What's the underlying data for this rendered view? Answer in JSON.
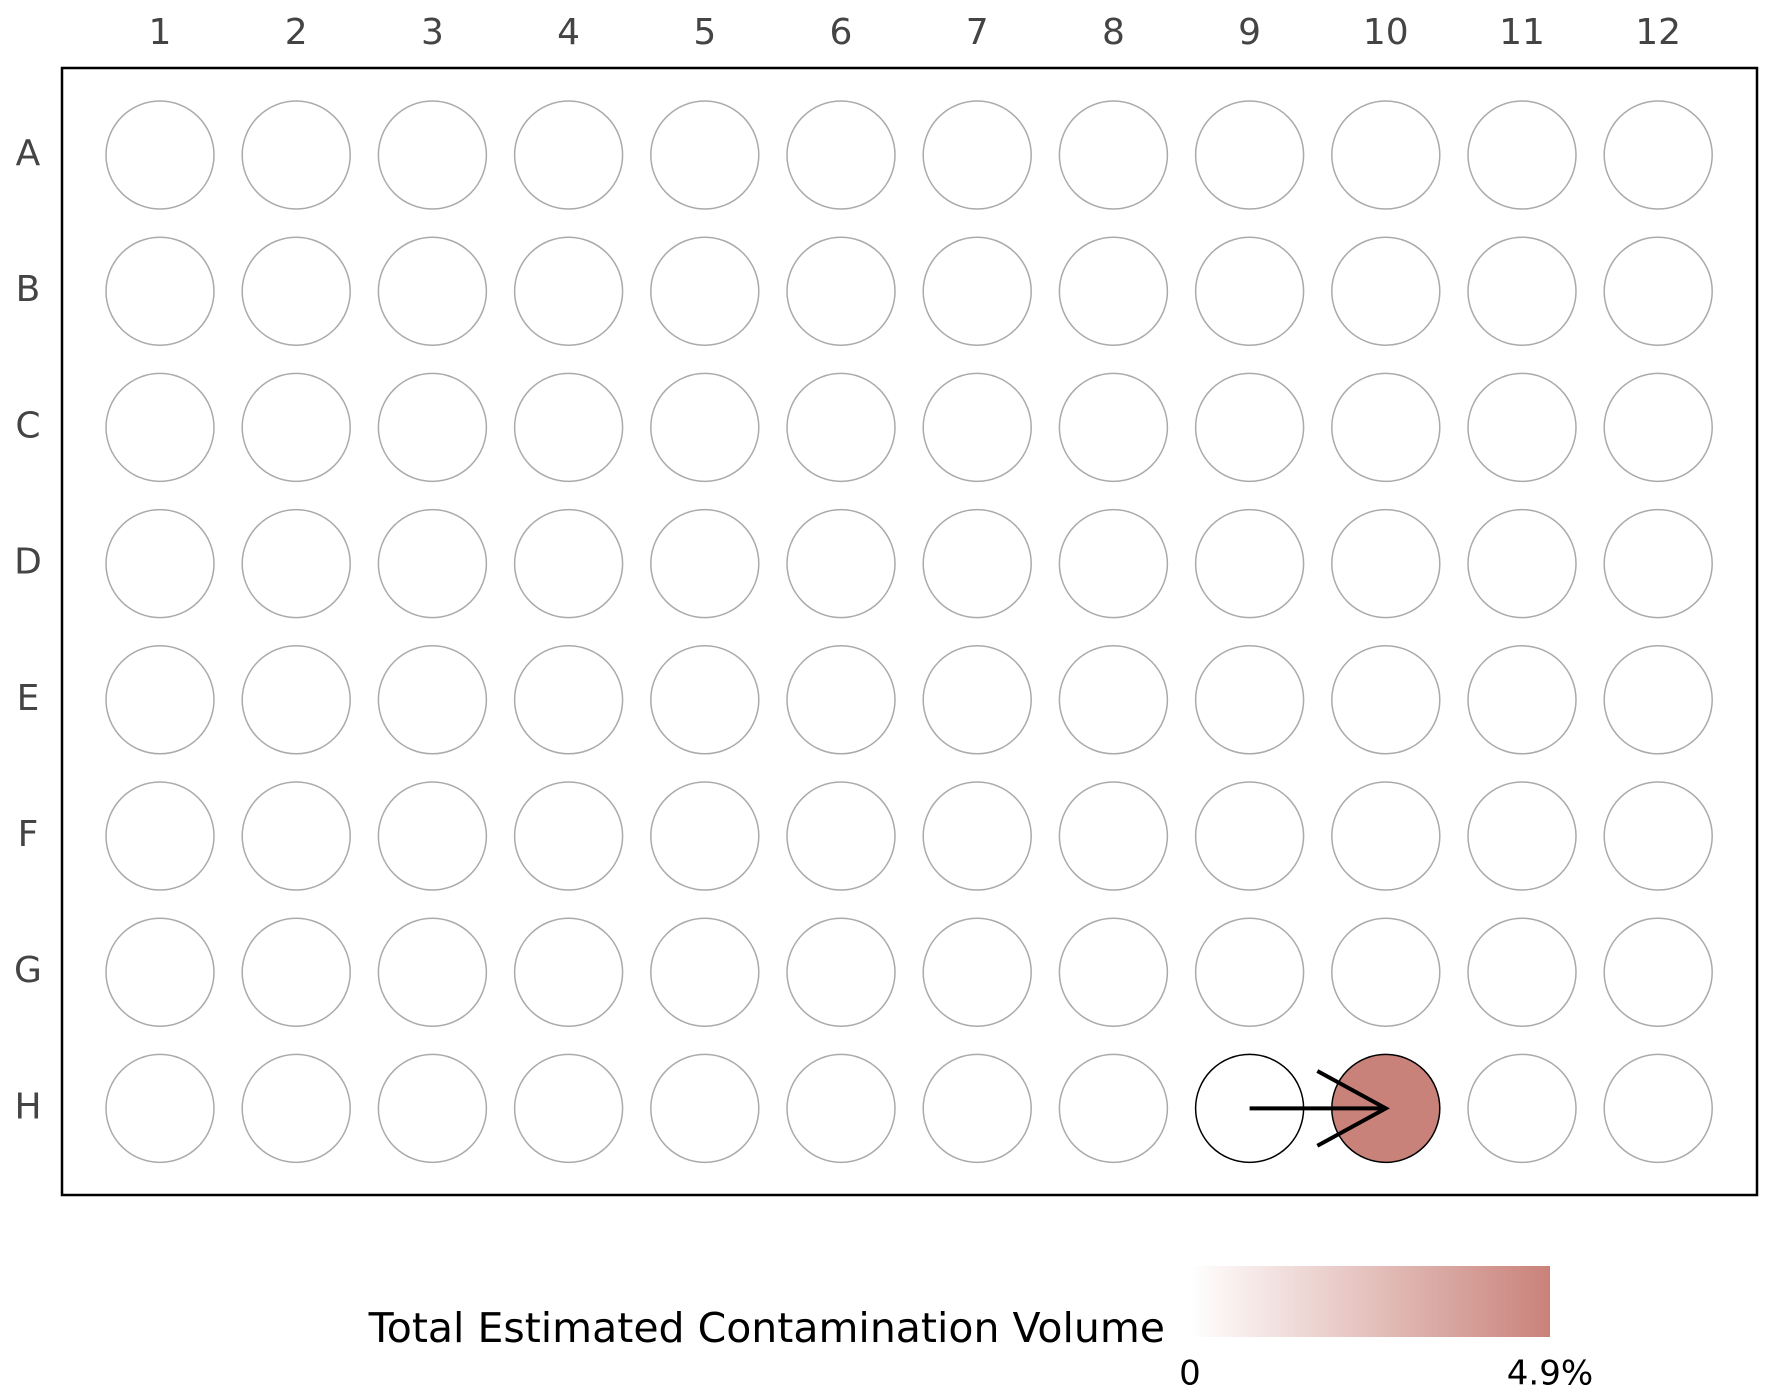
{
  "chart_data": {
    "type": "plate",
    "columns": [
      "1",
      "2",
      "3",
      "4",
      "5",
      "6",
      "7",
      "8",
      "9",
      "10",
      "11",
      "12"
    ],
    "rows": [
      "A",
      "B",
      "C",
      "D",
      "E",
      "F",
      "G",
      "H"
    ],
    "values": [
      [
        null,
        null,
        null,
        null,
        null,
        null,
        null,
        null,
        null,
        null,
        null,
        null
      ],
      [
        null,
        null,
        null,
        null,
        null,
        null,
        null,
        null,
        null,
        null,
        null,
        null
      ],
      [
        null,
        null,
        null,
        null,
        null,
        null,
        null,
        null,
        null,
        null,
        null,
        null
      ],
      [
        null,
        null,
        null,
        null,
        null,
        null,
        null,
        null,
        null,
        null,
        null,
        null
      ],
      [
        null,
        null,
        null,
        null,
        null,
        null,
        null,
        null,
        null,
        null,
        null,
        null
      ],
      [
        null,
        null,
        null,
        null,
        null,
        null,
        null,
        null,
        null,
        null,
        null,
        null
      ],
      [
        null,
        null,
        null,
        null,
        null,
        null,
        null,
        null,
        null,
        null,
        null,
        null
      ],
      [
        null,
        null,
        null,
        null,
        null,
        null,
        null,
        null,
        0,
        4.9,
        null,
        null
      ]
    ],
    "arrows": [
      {
        "from": [
          7,
          8
        ],
        "to": [
          7,
          9
        ]
      }
    ],
    "colorbar_title": "Total Estimated Contamination Volume",
    "colors": [
      "#ffffff",
      "#c9827a"
    ],
    "clim": [
      0,
      4.9
    ],
    "cticks": [
      0,
      {
        "value": 4.9,
        "label": "4.9%"
      }
    ]
  }
}
